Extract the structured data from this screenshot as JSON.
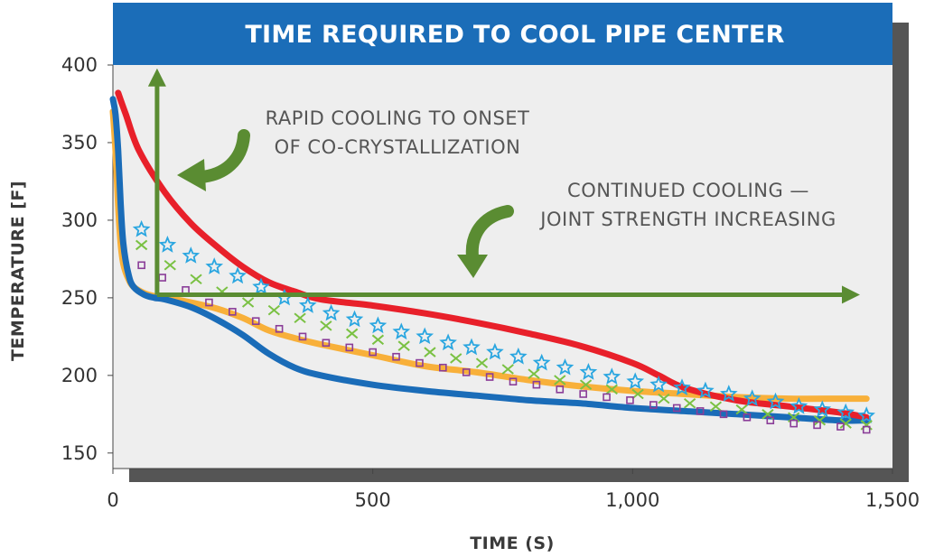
{
  "chart_data": {
    "type": "line",
    "title": "TIME REQUIRED TO COOL PIPE CENTER",
    "xlabel": "TIME (S)",
    "ylabel": "TEMPERATURE [F]",
    "xlim": [
      0,
      1500
    ],
    "ylim": [
      140,
      400
    ],
    "x_ticks": [
      0,
      500,
      1000,
      1500
    ],
    "x_tick_labels": [
      "0",
      "500",
      "1,000",
      "1,500"
    ],
    "y_ticks": [
      150,
      200,
      250,
      300,
      350,
      400
    ],
    "y_tick_labels": [
      "150",
      "200",
      "250",
      "300",
      "350",
      "400"
    ],
    "series": [
      {
        "name": "Red",
        "style": "line",
        "color": "#e8202a",
        "x": [
          10,
          25,
          50,
          100,
          150,
          200,
          250,
          300,
          350,
          400,
          500,
          600,
          700,
          800,
          900,
          1000,
          1050,
          1100,
          1200,
          1300,
          1400,
          1450
        ],
        "y": [
          382,
          368,
          345,
          318,
          298,
          283,
          270,
          260,
          254,
          249,
          245,
          240,
          234,
          227,
          219,
          208,
          200,
          192,
          184,
          180,
          176,
          173
        ]
      },
      {
        "name": "Blue",
        "style": "line",
        "color": "#1a6cb8",
        "x": [
          0,
          5,
          10,
          15,
          20,
          30,
          40,
          60,
          80,
          100,
          150,
          200,
          250,
          300,
          350,
          400,
          500,
          600,
          700,
          800,
          900,
          1000,
          1100,
          1200,
          1300,
          1400,
          1450
        ],
        "y": [
          378,
          368,
          345,
          310,
          285,
          265,
          257,
          252,
          250,
          249,
          244,
          236,
          226,
          214,
          205,
          200,
          194,
          190,
          187,
          184,
          182,
          179,
          177,
          175,
          173,
          171,
          171
        ]
      },
      {
        "name": "Orange",
        "style": "line",
        "color": "#f8b03a",
        "x": [
          0,
          5,
          10,
          15,
          20,
          30,
          40,
          60,
          80,
          100,
          150,
          200,
          250,
          300,
          350,
          400,
          500,
          600,
          700,
          800,
          900,
          1000,
          1100,
          1200,
          1300,
          1400,
          1450
        ],
        "y": [
          370,
          345,
          310,
          285,
          272,
          262,
          257,
          253,
          251,
          250,
          247,
          243,
          237,
          229,
          224,
          220,
          213,
          206,
          202,
          197,
          193,
          190,
          188,
          186,
          185,
          185,
          185
        ]
      },
      {
        "name": "Stars",
        "style": "marker",
        "marker": "star",
        "color": "#2aa6e0",
        "x": [
          55,
          105,
          150,
          195,
          240,
          285,
          330,
          375,
          420,
          465,
          510,
          555,
          600,
          645,
          690,
          735,
          780,
          825,
          870,
          915,
          960,
          1005,
          1050,
          1095,
          1140,
          1185,
          1230,
          1275,
          1320,
          1365,
          1410,
          1450
        ],
        "y": [
          294,
          284,
          277,
          270,
          264,
          257,
          250,
          245,
          240,
          236,
          232,
          228,
          225,
          221,
          218,
          215,
          212,
          208,
          205,
          202,
          199,
          196,
          194,
          192,
          190,
          188,
          185,
          183,
          180,
          178,
          176,
          174
        ]
      },
      {
        "name": "Crosses",
        "style": "marker",
        "marker": "cross",
        "color": "#7ac143",
        "x": [
          55,
          110,
          160,
          210,
          260,
          310,
          360,
          410,
          460,
          510,
          560,
          610,
          660,
          710,
          760,
          810,
          860,
          910,
          960,
          1010,
          1060,
          1110,
          1160,
          1210,
          1260,
          1310,
          1360,
          1410,
          1450
        ],
        "y": [
          284,
          271,
          262,
          254,
          247,
          242,
          237,
          232,
          227,
          223,
          219,
          215,
          211,
          208,
          204,
          201,
          197,
          194,
          191,
          188,
          185,
          182,
          180,
          178,
          175,
          173,
          171,
          169,
          168
        ]
      },
      {
        "name": "Squares",
        "style": "marker",
        "marker": "square",
        "color": "#8a3d98",
        "x": [
          55,
          95,
          140,
          185,
          230,
          275,
          320,
          365,
          410,
          455,
          500,
          545,
          590,
          635,
          680,
          725,
          770,
          815,
          860,
          905,
          950,
          995,
          1040,
          1085,
          1130,
          1175,
          1220,
          1265,
          1310,
          1355,
          1400,
          1450
        ],
        "y": [
          271,
          263,
          255,
          247,
          241,
          235,
          230,
          225,
          221,
          218,
          215,
          212,
          208,
          205,
          202,
          199,
          196,
          194,
          191,
          188,
          186,
          184,
          181,
          179,
          177,
          175,
          173,
          171,
          169,
          168,
          167,
          165
        ]
      }
    ],
    "annotations": [
      {
        "id": "rapid",
        "lines": [
          "RAPID COOLING TO ONSET",
          "OF CO-CRYSTALLIZATION"
        ]
      },
      {
        "id": "continued",
        "lines": [
          "CONTINUED COOLING —",
          "JOINT STRENGTH INCREASING"
        ]
      }
    ],
    "markers_guides": {
      "vertical_arrow": {
        "x": 85,
        "y_from": 252,
        "y_to": 392
      },
      "horizontal_arrow": {
        "y": 252,
        "x_from": 85,
        "x_to": 1420
      }
    },
    "grid": false,
    "legend": "none"
  },
  "colors": {
    "title_bar": "#1b6db8",
    "plot_bg": "#eeeeee",
    "shadow": "#555555",
    "guide_green": "#5a8c32"
  }
}
